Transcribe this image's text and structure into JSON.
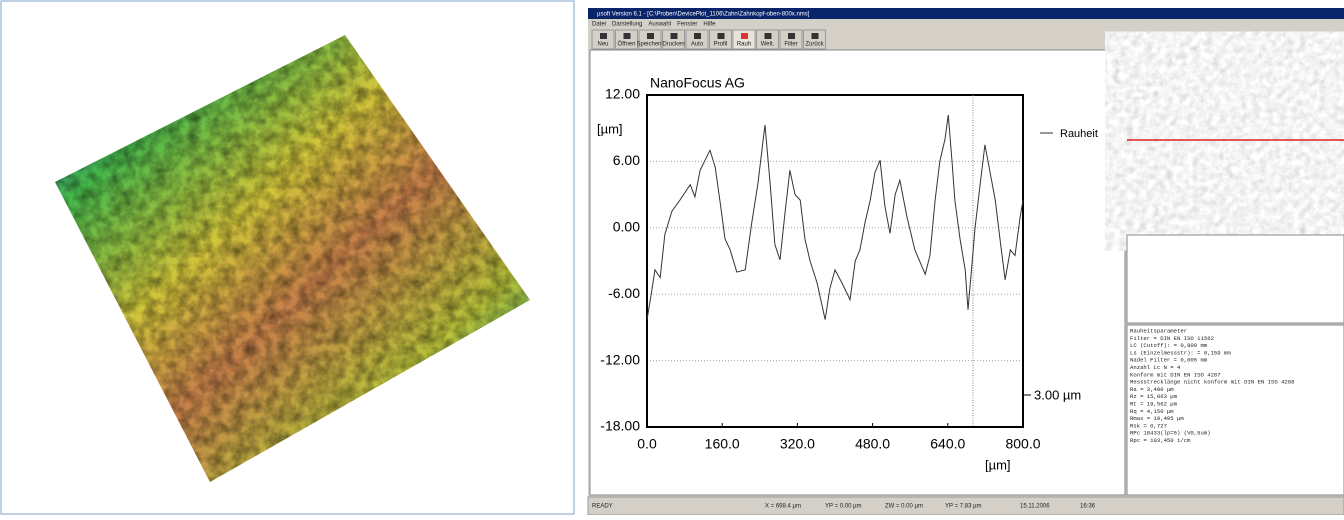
{
  "window": {
    "title": "µsoft Version 6.1 - [C:\\Proben\\DevicePlot_1106\\Zahn\\Zahnkopf-oben-800x.nms]",
    "menu": [
      "Datei",
      "Darstellung",
      "Auswahl",
      "Fenster",
      "Hilfe"
    ],
    "toolbar": [
      "Neu",
      "Öffnen",
      "Speichern",
      "Drucken",
      "Auto",
      "Profil",
      "Rauh",
      "Welt.",
      "Filter",
      "Zurück"
    ],
    "status": [
      "READY",
      "X = 698.4 µm",
      "YP = 0.00 µm",
      "ZW = 0.00 µm",
      "YP = 7.83 µm",
      "15.11.2006",
      "16:36"
    ]
  },
  "chart_data": {
    "type": "line",
    "title": "NanoFocus AG",
    "y_label": "[µm]",
    "x_label": "[µm]",
    "annotation": "3.00 µm",
    "grid": true,
    "xlim": [
      0,
      800
    ],
    "ylim": [
      -18,
      12
    ],
    "xticks": [
      {
        "value": 0,
        "label": "0.0"
      },
      {
        "value": 160,
        "label": "160.0"
      },
      {
        "value": 320,
        "label": "320.0"
      },
      {
        "value": 480,
        "label": "480.0"
      },
      {
        "value": 640,
        "label": "640.0"
      },
      {
        "value": 800,
        "label": "800.0"
      }
    ],
    "yticks": [
      {
        "value": 12,
        "label": "12.00"
      },
      {
        "value": 6,
        "label": "6.00"
      },
      {
        "value": 0,
        "label": "0.00"
      },
      {
        "value": -6,
        "label": "-6.00"
      },
      {
        "value": -12,
        "label": "-12.00"
      },
      {
        "value": -18,
        "label": "-18.00"
      }
    ],
    "series": [
      {
        "name": "Rauheit",
        "color": "#333333",
        "x": [
          0,
          9,
          17,
          28,
          38,
          53,
          70,
          92,
          102,
          113,
          134,
          145,
          155,
          166,
          177,
          191,
          209,
          223,
          236,
          251,
          262,
          272,
          283,
          294,
          304,
          315,
          326,
          336,
          347,
          362,
          379,
          389,
          400,
          415,
          432,
          443,
          453,
          464,
          475,
          485,
          496,
          506,
          517,
          528,
          538,
          553,
          570,
          592,
          602,
          613,
          623,
          634,
          641,
          649,
          655,
          666,
          677,
          683,
          692,
          698,
          709,
          719,
          730,
          741,
          751,
          762,
          773,
          783,
          794,
          800
        ],
        "values": [
          -8.3,
          -6,
          -3.8,
          -4.5,
          -0.6,
          1.5,
          2.5,
          3.9,
          2.8,
          5.2,
          7,
          5.5,
          2.5,
          -1,
          -2,
          -4,
          -3.8,
          0.5,
          4,
          9.3,
          4,
          -1.5,
          -2.9,
          1.5,
          5.2,
          3,
          2.5,
          -1,
          -3,
          -5,
          -8.3,
          -5.5,
          -3.8,
          -5,
          -6.5,
          -3,
          -2,
          0.5,
          2.5,
          5,
          6.1,
          2,
          -0.5,
          3,
          4.3,
          1,
          -2,
          -4.2,
          -2.5,
          2.5,
          6,
          8,
          10.2,
          6,
          2.5,
          -1,
          -3.8,
          -7.4,
          -3,
          0,
          4,
          7.5,
          5,
          2.5,
          -1,
          -4.7,
          -2,
          -2.5,
          1,
          2.5
        ]
      }
    ]
  },
  "params": [
    "Rauheitsparameter",
    "Filter          = DIN EN ISO 11562",
    "LC (Cutoff):          = 0,800 mm",
    "Ls (Einzelmessstr):   = 0,159 mm",
    "Nadel Filter          = 0,005 mm",
    "Anzahl Lc N           = 4",
    "Konform mit DIN EN ISO 4287",
    "Messstrecklänge nicht konform mit DIN EN ISO 4288",
    "Ra                = 3,400 µm",
    "Rz                = 15,063 µm",
    "Rt                = 19,562 µm",
    "Rq                = 4,150 µm",
    "Rmax              = 19,495 µm",
    "Rsk               = 0,727",
    "RPc 18433(lp=5)   (V0,5um)",
    "Rpc          = 103,450 1/cm"
  ]
}
